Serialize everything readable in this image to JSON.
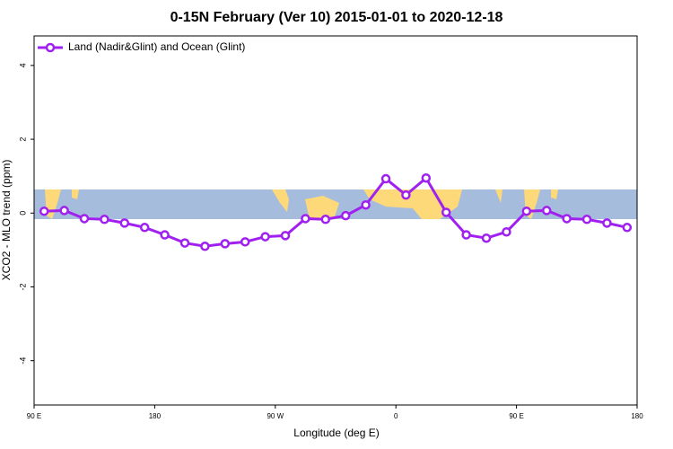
{
  "chart_data": {
    "type": "line",
    "title": "0-15N February (Ver 10)   2015-01-01 to 2020-12-18",
    "x_label": "Longitude (deg E)",
    "y_label": "XCO2 - MLO trend (ppm)",
    "legend_position": "upper-left",
    "x": [
      97.5,
      112.5,
      127.5,
      142.5,
      157.5,
      172.5,
      187.5,
      202.5,
      217.5,
      232.5,
      247.5,
      262.5,
      277.5,
      292.5,
      307.5,
      322.5,
      337.5,
      352.5,
      367.5,
      382.5,
      397.5,
      412.5,
      427.5,
      442.5,
      457.5,
      472.5,
      487.5,
      502.5,
      517.5,
      532.5
    ],
    "series": [
      {
        "name": "Land (Nadir&Glint) and Ocean (Glint)",
        "color": "#a020f0",
        "values": [
          0.05,
          0.07,
          -0.15,
          -0.17,
          -0.27,
          -0.39,
          -0.59,
          -0.81,
          -0.9,
          -0.83,
          -0.78,
          -0.64,
          -0.61,
          -0.15,
          -0.17,
          -0.07,
          0.22,
          0.93,
          0.49,
          0.95,
          0.02,
          -0.59,
          -0.68,
          -0.51,
          0.05,
          0.07,
          -0.15,
          -0.17,
          -0.27,
          -0.39
        ]
      }
    ],
    "xlim": [
      90,
      540
    ],
    "xticks": [
      {
        "value": 90,
        "label": "90 E"
      },
      {
        "value": 180,
        "label": "180"
      },
      {
        "value": 270,
        "label": "90 W"
      },
      {
        "value": 360,
        "label": "0"
      },
      {
        "value": 450,
        "label": "90 E"
      },
      {
        "value": 540,
        "label": "180"
      }
    ],
    "ylim": [
      -5.2,
      4.8
    ],
    "yticks": [
      -4,
      -2,
      0,
      2,
      4
    ]
  }
}
